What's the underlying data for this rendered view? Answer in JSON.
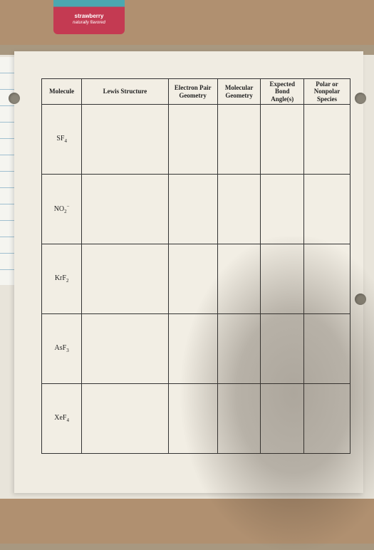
{
  "package": {
    "flavor": "strawberry",
    "natural": "naturally flavored"
  },
  "table": {
    "headers": {
      "molecule": "Molecule",
      "lewis": "Lewis Structure",
      "epair": "Electron Pair Geometry",
      "molgeom": "Molecular Geometry",
      "bondangle": "Expected Bond Angle(s)",
      "polar": "Polar or Nonpolar Species"
    },
    "rows": [
      {
        "formula": "SF",
        "sub": "4",
        "sup": ""
      },
      {
        "formula": "NO",
        "sub": "2",
        "sup": "−"
      },
      {
        "formula": "KrF",
        "sub": "2",
        "sup": ""
      },
      {
        "formula": "AsF",
        "sub": "3",
        "sup": ""
      },
      {
        "formula": "XeF",
        "sub": "4",
        "sup": ""
      }
    ]
  },
  "style": {
    "header_fontsize": 9,
    "cell_fontsize": 10,
    "border_color": "#333333",
    "paper_bg": "#f0ece2",
    "ruled_line_color": "#a0c0d0",
    "counter_bg": "#b09070",
    "package_top": "#4ba8b0",
    "package_body": "#c43a52"
  }
}
